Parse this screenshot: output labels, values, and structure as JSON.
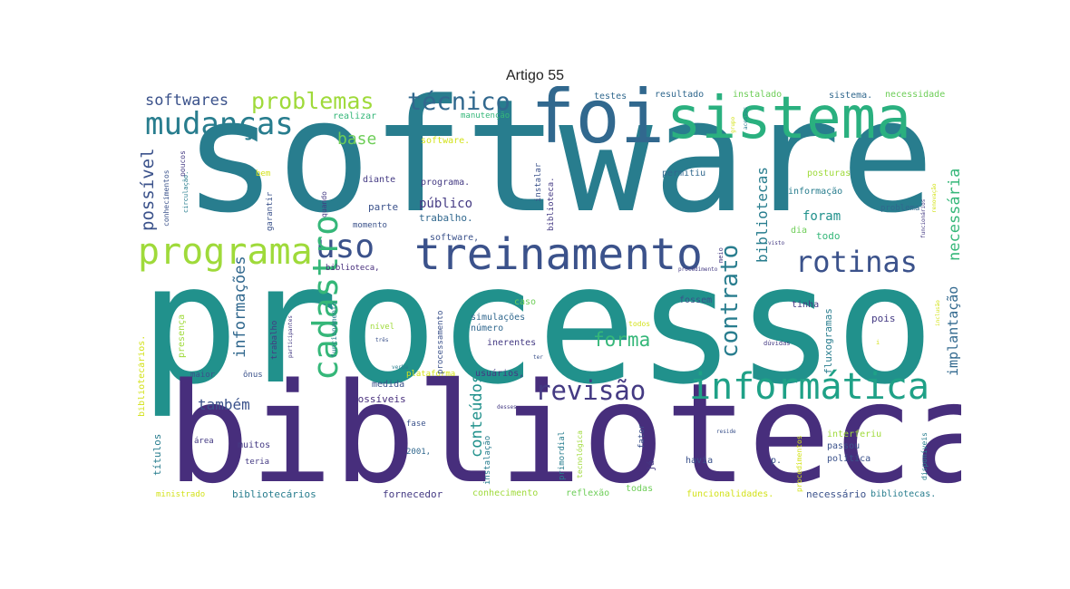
{
  "title": "Artigo 55",
  "palette": {
    "dark_purple": "#472e7c",
    "purple": "#443a83",
    "blue": "#3b528b",
    "steel": "#31688e",
    "teal": "#287d8e",
    "teal2": "#21918c",
    "green_teal": "#1fa187",
    "green": "#35b779",
    "light_green": "#6ece58",
    "lime": "#9fda3a",
    "yellow": "#d3e21b"
  },
  "words": {
    "software": "software",
    "processo": "processo",
    "biblioteca": "biblioteca",
    "foi": "foi",
    "sistema": "sistema",
    "treinamento": "treinamento",
    "programa": "programa",
    "informatica": "informática",
    "mudancas": "mudanças",
    "tecnico": "técnico",
    "problemas": "problemas",
    "softwares": "softwares",
    "rotinas": "rotinas",
    "uso": "uso",
    "revisao": "revisão",
    "cadastro": "cadastro",
    "contrato": "contrato",
    "forma": "forma",
    "base": "base",
    "possivel": "possível",
    "informacoes": "informações",
    "tambem": "também",
    "conteudos": "conteúdos",
    "necessaria": "necessária",
    "implantacao": "implantação",
    "bibliotecas": "bibliotecas",
    "foram": "foram",
    "todo": "todo",
    "publico": "público",
    "trabalho_dot": "trabalho.",
    "programa_dot": "programa.",
    "software_comma": "software,",
    "software_dot": "software.",
    "testes": "testes",
    "resultado": "resultado",
    "instalado": "instalado",
    "sistema_dot": "sistema.",
    "necessidade": "necessidade",
    "realizar": "realizar",
    "manutencao": "manutenção",
    "diante": "diante",
    "parte": "parte",
    "momento": "momento",
    "permitiu": "permitiu",
    "posturas": "posturas",
    "informacao": "informação",
    "problema": "problema",
    "dia": "dia",
    "bem": "bem",
    "quando": "quando",
    "garantir": "garantir",
    "biblioteca_comma": "biblioteca,",
    "caso": "caso",
    "simulacoes": "simulações",
    "numero": "número",
    "inerentes": "inerentes",
    "fossem": "fossem",
    "tinha": "tinha",
    "pois": "pois",
    "todos": "todos",
    "nivel": "nível",
    "maior": "maior",
    "onus": "ônus",
    "medida": "medida",
    "possiveis": "possíveis",
    "plataforma": "plataforma",
    "usuarios": "usuários,",
    "titulos": "títulos",
    "area": "área",
    "muitos": "muitos",
    "teria": "teria",
    "fase": "fase",
    "ano_2001": "2001,",
    "havia": "havia",
    "p": "p.",
    "politica": "política",
    "passou": "passou",
    "interferiu": "interferiu",
    "ministrado": "ministrado",
    "bibliotecarios": "bibliotecários",
    "fornecedor": "fornecedor",
    "conhecimento": "conhecimento",
    "reflexao": "reflexão",
    "todas": "todas",
    "funcionalidades": "funcionalidades.",
    "necessario": "necessário",
    "bibliotecas_dot": "bibliotecas.",
    "fluxogramas": "fluxogramas",
    "procedimentos": "procedimentos",
    "disponiveis": "disponíveis",
    "bibliotecarios_dot": "bibliotecários.",
    "presenca": "presença",
    "processamento": "processamento",
    "funcionamento": "funcionamento",
    "trabalho": "trabalho",
    "primordial": "primordial",
    "instalacao": "instalação",
    "tecnologica": "tecnológica",
    "fator": "fator",
    "ja": "já",
    "conhecimentos": "conhecimentos",
    "poucos": "poucos",
    "circulacao": "circulação.",
    "instalar": "instalar",
    "biblioteca_dot": "biblioteca.",
    "meio": "meio",
    "grupo": "grupo",
    "acessos": "acessos",
    "participantes": "participantes",
    "tres": "três",
    "ter": "ter",
    "desses": "desses",
    "duvidas": "dúvidas",
    "reside": "reside",
    "inclusao": "inclusão",
    "verba": "verba",
    "visto": "visto",
    "procedimento": "procedimento",
    "renovacao": "renovação",
    "funcionarios": "funcionários",
    "i": "i"
  }
}
